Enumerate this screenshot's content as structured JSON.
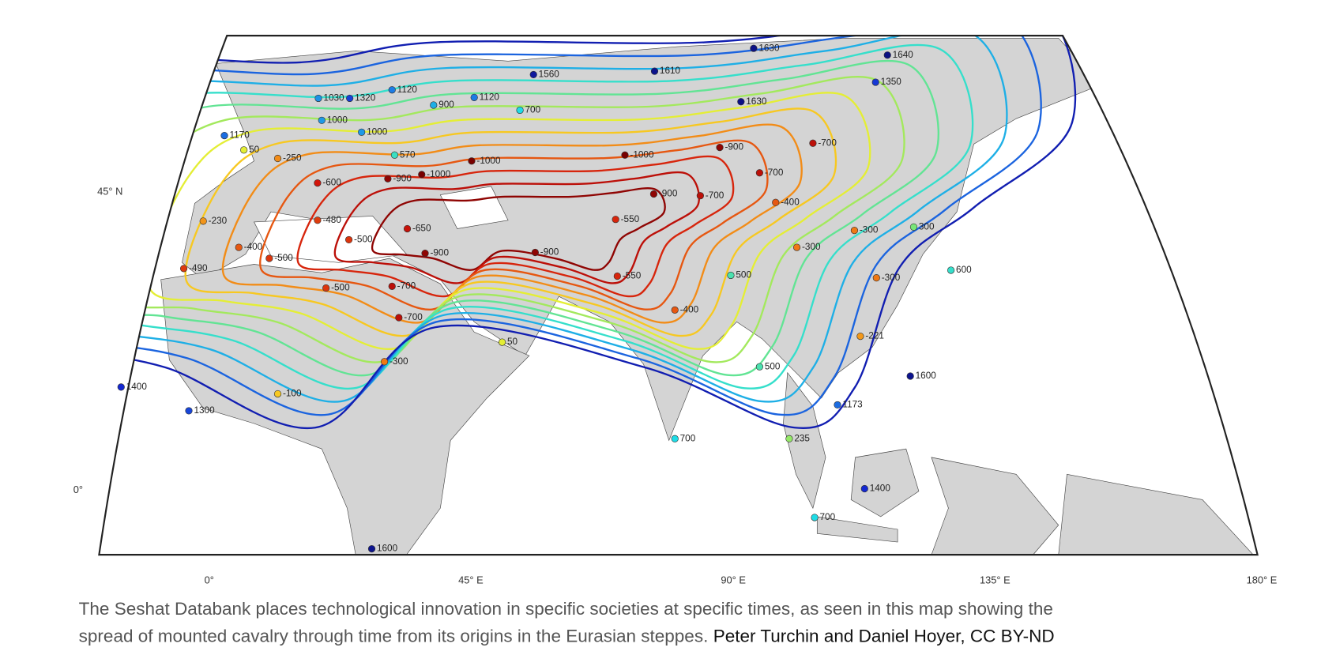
{
  "map": {
    "axis_labels": {
      "lat": [
        "45° N",
        "0°"
      ],
      "lon": [
        "0°",
        "45° E",
        "90° E",
        "135° E",
        "180° E"
      ]
    },
    "points": [
      1630,
      1640,
      1560,
      1610,
      1350,
      1630,
      1120,
      1120,
      900,
      700,
      1030,
      1320,
      1000,
      1000,
      1170,
      50,
      -250,
      570,
      -1000,
      -1000,
      -900,
      -700,
      -900,
      -1000,
      -600,
      -700,
      -900,
      -700,
      -400,
      -230,
      -480,
      -550,
      -650,
      -500,
      -300,
      300,
      -400,
      -500,
      -900,
      -900,
      -300,
      -490,
      500,
      -550,
      600,
      -300,
      -500,
      -700,
      -400,
      -700,
      -221,
      50,
      -300,
      500,
      1400,
      1600,
      -100,
      1300,
      1173,
      700,
      235,
      1400,
      700,
      1600
    ]
  },
  "caption": {
    "description_lines": [
      "The Seshat Databank places technological innovation in specific societies at specific times, as seen in this map showing the",
      "spread of mounted cavalry through time from its origins in the Eurasian steppes."
    ],
    "credit": "Peter Turchin and Daniel Hoyer, CC BY-ND"
  }
}
